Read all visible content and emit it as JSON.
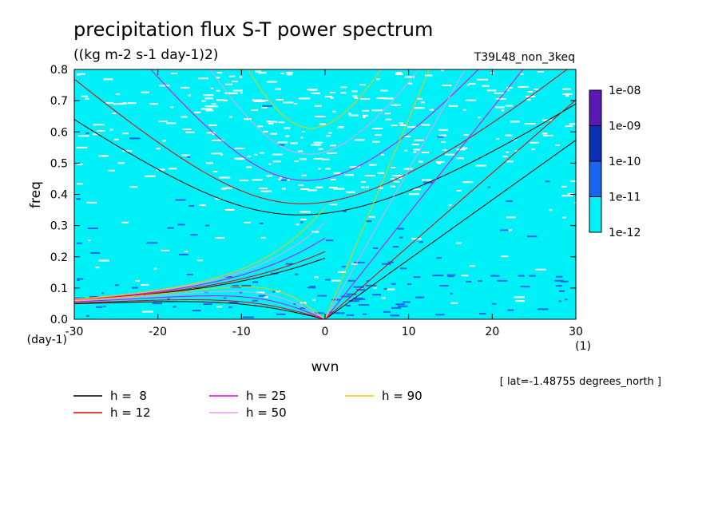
{
  "chart_data": {
    "type": "heatmap",
    "title": "precipitation flux S-T power spectrum",
    "subtitle": "((kg m-2 s-1 day-1)2)",
    "run_label": "T39L48_non_3keq",
    "xlabel": "wvn",
    "ylabel": "freq",
    "x_unit": "(1)",
    "y_unit": "(day-1)",
    "xlim": [
      -30,
      30
    ],
    "ylim": [
      0,
      0.8
    ],
    "x_ticks": [
      -30,
      -20,
      -10,
      0,
      10,
      20,
      30
    ],
    "x_tick_labels": [
      "-30",
      "-20",
      "-10",
      "0",
      "10",
      "20",
      "30"
    ],
    "y_ticks": [
      0,
      0.1,
      0.2,
      0.3,
      0.4,
      0.5,
      0.6,
      0.7,
      0.8
    ],
    "y_tick_labels": [
      "0.0",
      "0.1",
      "0.2",
      "0.3",
      "0.4",
      "0.5",
      "0.6",
      "0.7",
      "0.8"
    ],
    "colorbar": {
      "labels": [
        "1e-08",
        "1e-09",
        "1e-10",
        "1e-11",
        "1e-12"
      ],
      "colors": [
        "#5a18b4",
        "#0a2fb4",
        "#1866f0",
        "#00f0f8"
      ]
    },
    "field_colors": {
      "background": "#ffffff",
      "level1": "#00f0f8",
      "level2": "#1866f0",
      "level3": "#0a2fb4"
    },
    "dispersion_curves": [
      {
        "label": "h =  8",
        "h": 8,
        "color": "#000000"
      },
      {
        "label": "h = 12",
        "h": 12,
        "color": "#e00000"
      },
      {
        "label": "h = 25",
        "h": 25,
        "color": "#e000e0"
      },
      {
        "label": "h = 50",
        "h": 50,
        "color": "#e8a0e8"
      },
      {
        "label": "h = 90",
        "h": 90,
        "color": "#f0c800"
      }
    ],
    "note": "[ lat=-1.48755 degrees_north ]"
  }
}
